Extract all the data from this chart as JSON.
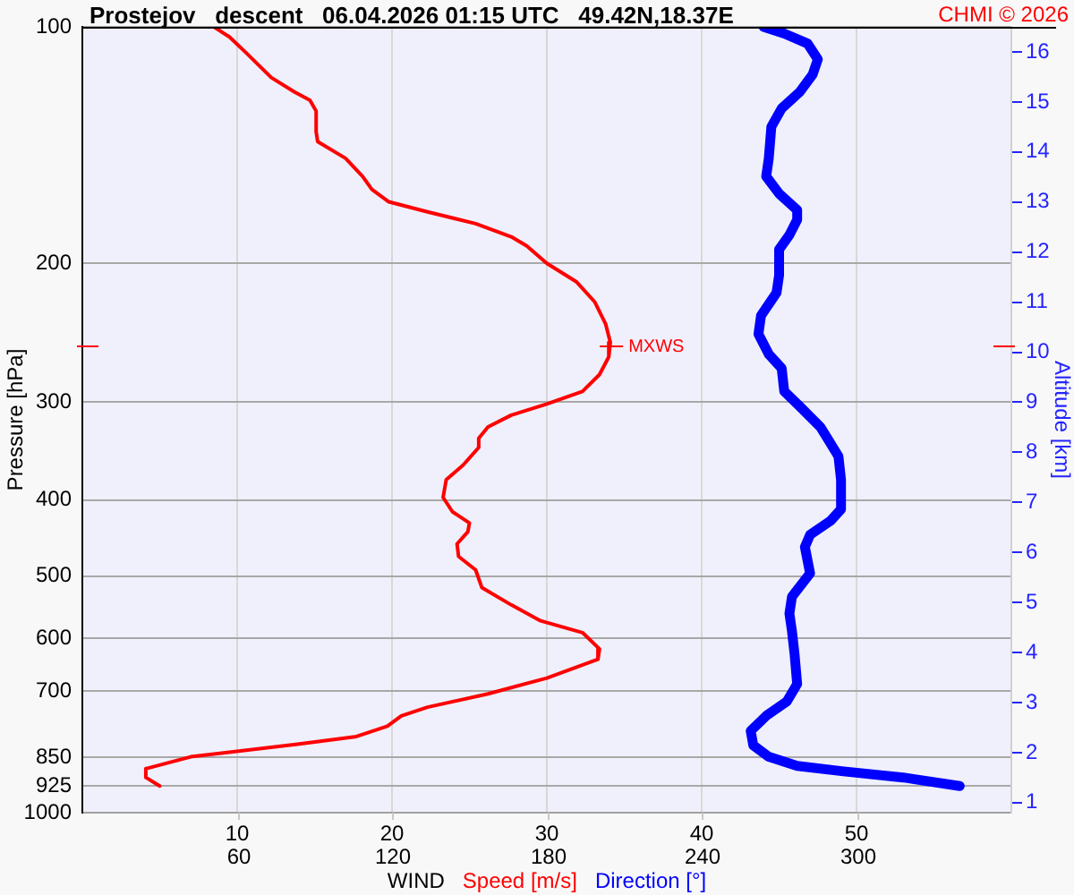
{
  "chart_data": {
    "type": "line",
    "title": "Prostejov   descent   06.04.2026 01:15 UTC   49.42N,18.37E",
    "xlabel": "WIND",
    "ylabel": "Pressure [hPa]",
    "y2label": "Altitude [km]",
    "annotations": [
      "CHMI © 2026",
      {
        "text": "MXWS",
        "x": 34,
        "y": 255
      }
    ],
    "xlim": [
      0,
      60
    ],
    "xticks": [
      10,
      20,
      30,
      40,
      50
    ],
    "x2lim": [
      0,
      360
    ],
    "x2ticks": [
      60,
      120,
      180,
      240,
      300
    ],
    "ylim": [
      1000,
      100
    ],
    "yticks": [
      100,
      200,
      300,
      400,
      500,
      600,
      700,
      850,
      925,
      1000
    ],
    "y2lim": [
      0.8,
      16.5
    ],
    "y2ticks": [
      1,
      2,
      3,
      4,
      5,
      6,
      7,
      8,
      9,
      10,
      11,
      12,
      13,
      14,
      15,
      16
    ],
    "log": "y",
    "grid": true,
    "legend": "bottom",
    "marker": "none",
    "series": [
      {
        "name": "Speed [m/s]",
        "color": "#ff0000",
        "x": [
          8.5,
          9.5,
          10.6,
          12.2,
          13.7,
          14.7,
          15.1,
          15.1,
          15.2,
          17.0,
          18.1,
          18.7,
          19.8,
          22.3,
          25.4,
          27.7,
          28.7,
          30.0,
          31.9,
          33.1,
          33.8,
          34.1,
          34.0,
          33.4,
          32.3,
          30.0,
          27.7,
          26.2,
          25.6,
          25.6,
          24.6,
          23.5,
          23.3,
          23.9,
          25.0,
          24.9,
          24.2,
          24.3,
          25.4,
          25.8,
          27.7,
          29.6,
          32.3,
          33.4,
          33.3,
          30.0,
          26.2,
          22.3,
          20.6,
          19.7,
          17.7,
          13.9,
          7.0,
          4.1,
          4.1,
          5.0
        ],
        "values": [
          100,
          103,
          108,
          116,
          121,
          124,
          128,
          136,
          140,
          147,
          155,
          161,
          167,
          172,
          178,
          185,
          190,
          200,
          211,
          224,
          239,
          252,
          263,
          277,
          291,
          302,
          312,
          323,
          334,
          343,
          361,
          377,
          397,
          414,
          428,
          439,
          455,
          472,
          491,
          517,
          544,
          570,
          590,
          619,
          638,
          674,
          706,
          734,
          753,
          776,
          800,
          818,
          849,
          879,
          902,
          925
        ]
      },
      {
        "name": "Direction [°]",
        "color": "#0000ff",
        "axis": "x2",
        "x": [
          264,
          272,
          281,
          285,
          283,
          278,
          271,
          267,
          266,
          265,
          270,
          277,
          277,
          274,
          270,
          270,
          269,
          263,
          262,
          266,
          271,
          272,
          278,
          286,
          288,
          293,
          294,
          294,
          290,
          282,
          280,
          282,
          275,
          274,
          275,
          276,
          277,
          273,
          265,
          259,
          260,
          266,
          277,
          295,
          318,
          340
        ],
        "values": [
          100,
          102,
          105,
          110,
          115,
          121,
          127,
          134,
          147,
          155,
          163,
          171,
          176,
          184,
          192,
          207,
          218,
          233,
          246,
          261,
          272,
          291,
          304,
          323,
          331,
          352,
          377,
          411,
          425,
          443,
          459,
          496,
          531,
          558,
          588,
          629,
          686,
          722,
          753,
          787,
          821,
          849,
          872,
          886,
          902,
          925
        ]
      }
    ]
  }
}
